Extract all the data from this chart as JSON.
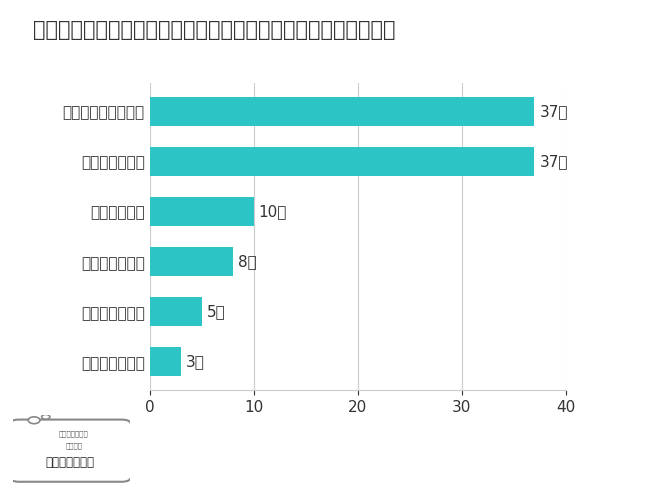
{
  "title": "ブリーチ後に使うシャンプー選びで一番大切にしていることは？",
  "categories": [
    "ツヤツヤになる",
    "さらさらになる",
    "頭皮がしみない",
    "しっとりする",
    "補修効果がある",
    "カラーの色落ち防ぐ"
  ],
  "values": [
    3,
    5,
    8,
    10,
    37,
    37
  ],
  "labels": [
    "3人",
    "5人",
    "8人",
    "10人",
    "37人",
    "37人"
  ],
  "bar_color": "#2CC4C4",
  "background_color": "#FFFFFF",
  "title_fontsize": 15,
  "label_fontsize": 11,
  "tick_fontsize": 11,
  "xlim": [
    0,
    40
  ],
  "xticks": [
    0,
    10,
    20,
    30,
    40
  ],
  "grid_color": "#CCCCCC",
  "text_color": "#333333"
}
